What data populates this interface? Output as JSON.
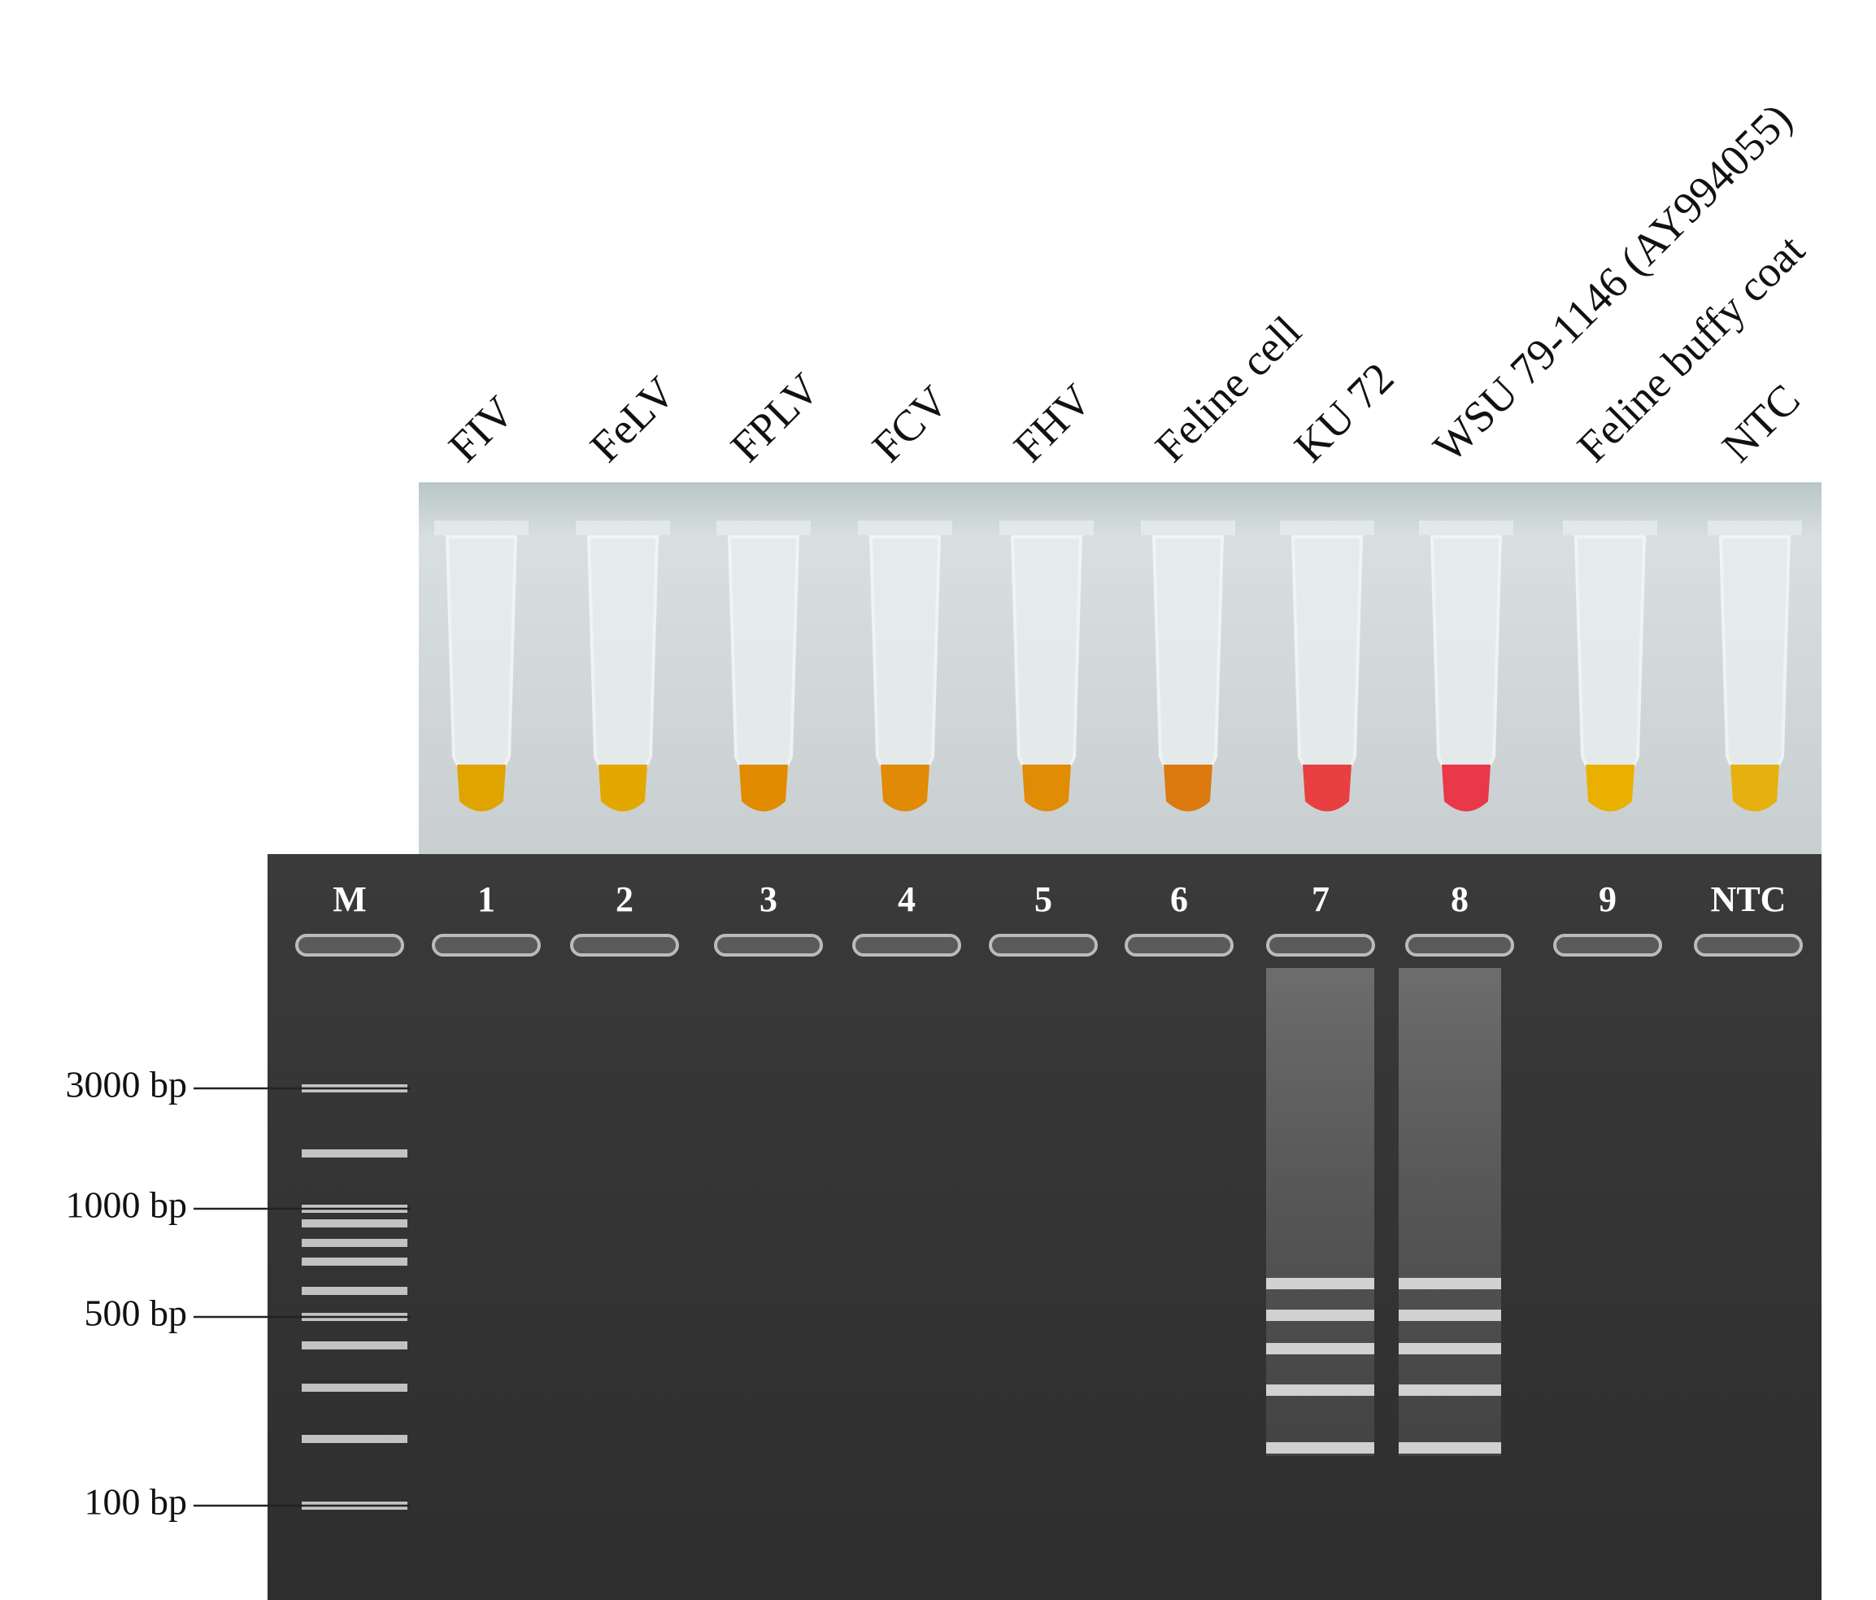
{
  "samples": [
    "FIV",
    "FeLV",
    "FPLV",
    "FCV",
    "FHV",
    "Feline cell",
    "KU 72",
    "WSU 79-1146 (AY994055)",
    "Feline buffy coat",
    "NTC"
  ],
  "lanes": [
    "M",
    "1",
    "2",
    "3",
    "4",
    "5",
    "6",
    "7",
    "8",
    "9",
    "NTC"
  ],
  "markers": [
    "3000 bp",
    "1000 bp",
    "500 bp",
    "100 bp"
  ]
}
